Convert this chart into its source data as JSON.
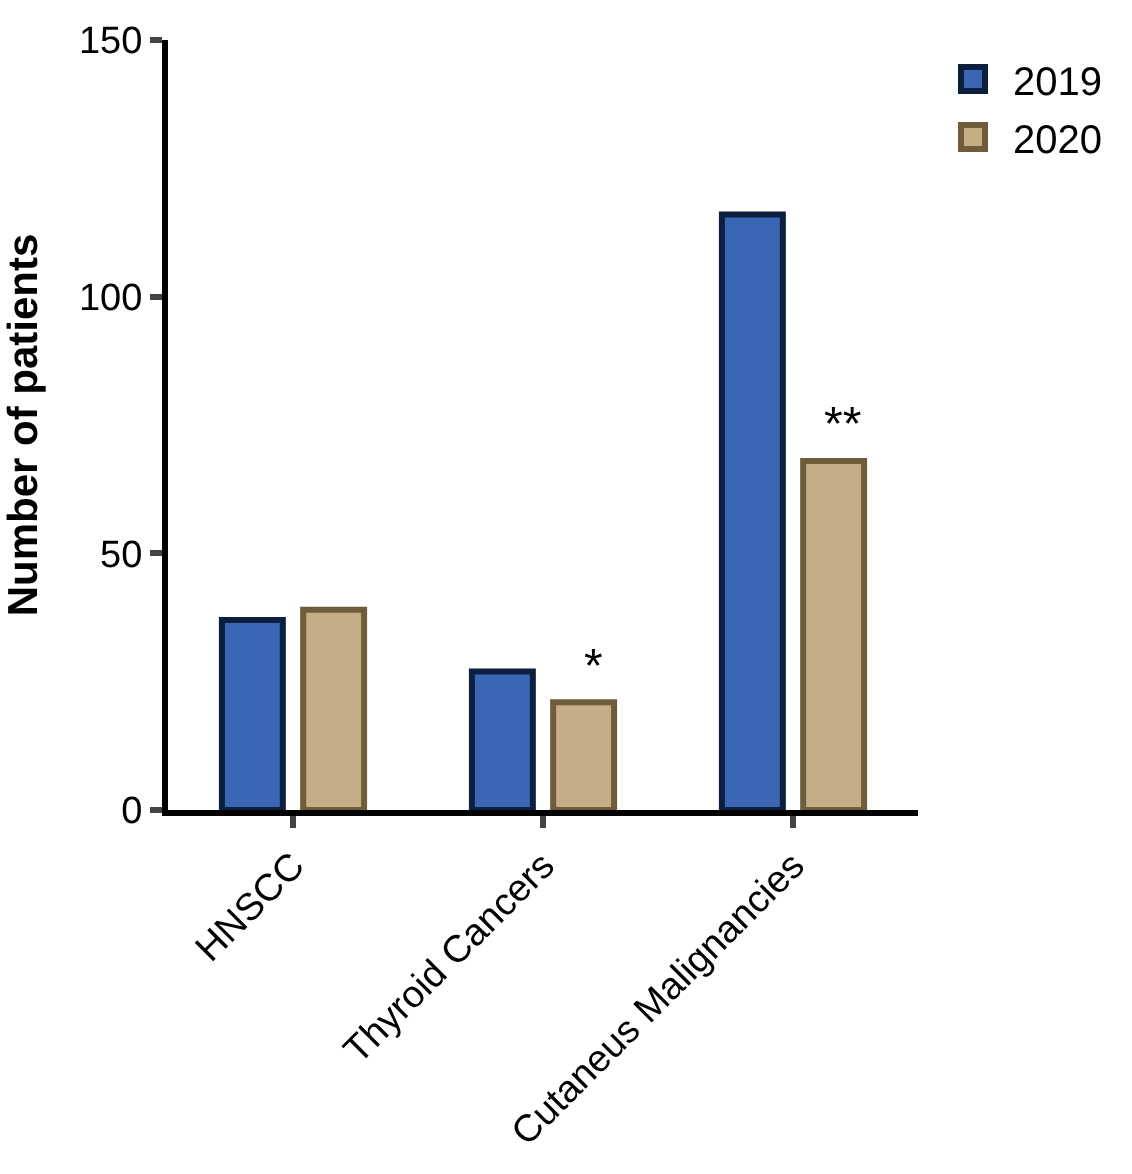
{
  "chart_data": {
    "type": "bar",
    "ylabel": "Number of patients",
    "categories": [
      "HNSCC",
      "Thyroid Cancers",
      "Cutaneus Malignancies"
    ],
    "series": [
      {
        "name": "2019",
        "color": "#3b66b4",
        "values": [
          37,
          27,
          116
        ]
      },
      {
        "name": "2020",
        "color": "#c5ad86",
        "values": [
          39,
          21,
          68
        ]
      }
    ],
    "ylim": [
      0,
      150
    ],
    "yticks": [
      0,
      50,
      100,
      150
    ],
    "legend": "top right",
    "annotations": [
      "*",
      "**"
    ]
  }
}
